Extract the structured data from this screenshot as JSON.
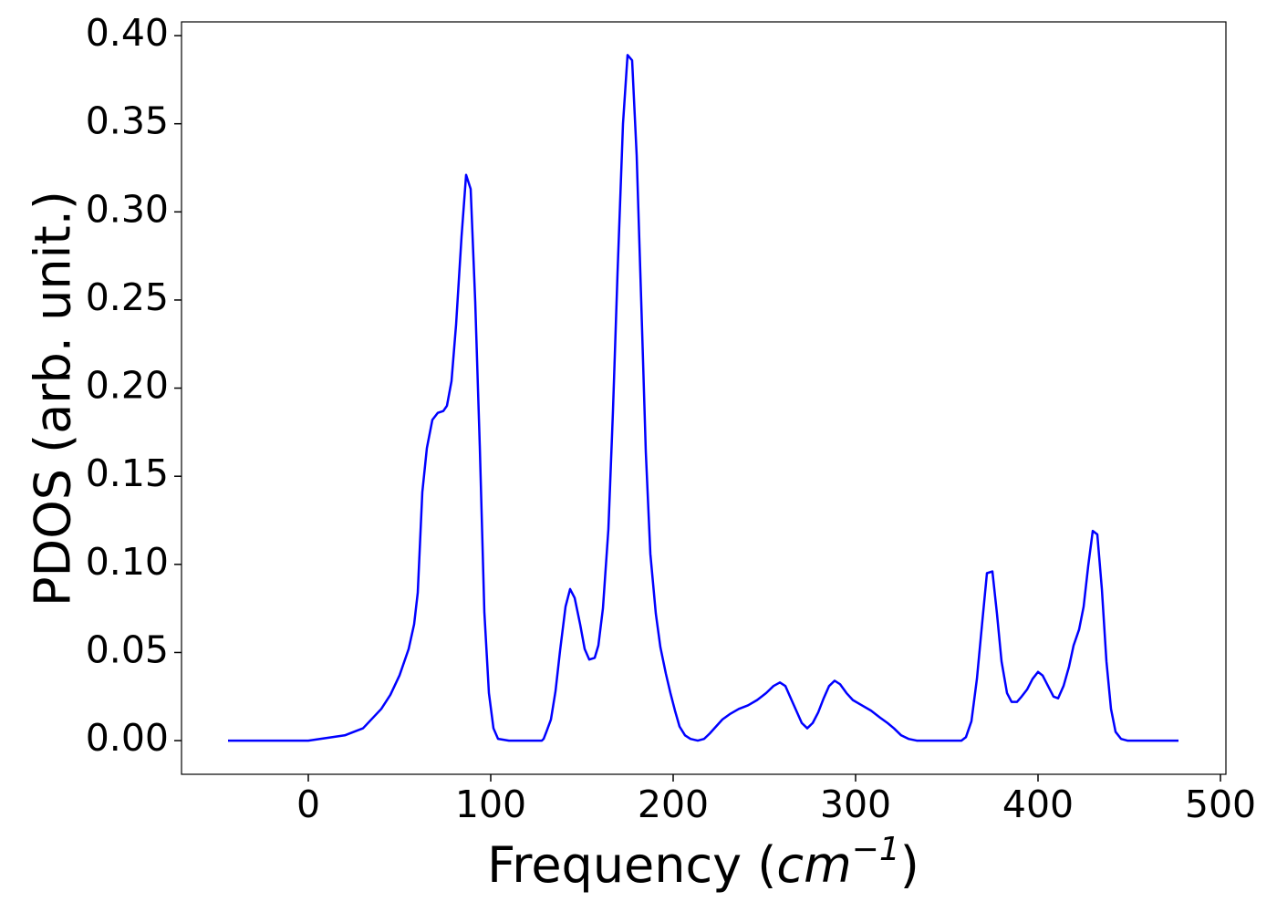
{
  "chart_data": {
    "type": "line",
    "xlabel": [
      "Frequency (",
      "cm",
      "−1",
      ")"
    ],
    "ylabel": "PDOS (arb. unit.)",
    "color": "#0000ff",
    "x": [
      -44,
      0,
      20,
      30,
      40,
      45,
      50,
      55,
      58,
      60,
      62.5,
      65,
      68,
      71,
      74,
      76,
      78.5,
      81,
      84,
      86.5,
      89,
      91.5,
      94,
      96.5,
      99,
      101.5,
      104,
      110,
      128,
      129,
      130.5,
      133,
      135.5,
      138,
      141,
      143.5,
      146,
      149,
      151.5,
      154,
      157,
      159,
      161.5,
      164.5,
      167,
      169.5,
      172.5,
      175,
      177.5,
      180,
      182.5,
      185,
      187.5,
      190.5,
      193,
      196,
      198.5,
      201,
      203.5,
      206.5,
      209.5,
      213.5,
      217,
      220,
      223.5,
      227,
      231,
      236,
      241,
      246,
      251,
      255,
      258.5,
      261.5,
      264.5,
      267.5,
      270.5,
      273.5,
      276.5,
      279.5,
      282.5,
      285.5,
      288.5,
      291.5,
      295,
      298.5,
      303.5,
      308.5,
      313.5,
      317.5,
      321,
      325,
      329,
      333.5,
      358,
      360.5,
      363.5,
      366.5,
      369.5,
      372,
      375,
      377.5,
      380,
      383,
      385.5,
      388.5,
      391,
      394,
      397,
      400,
      402.5,
      405.5,
      408.5,
      411,
      414,
      417,
      419.5,
      422.5,
      425,
      427.5,
      430,
      432.5,
      435,
      437.5,
      440,
      442.5,
      445.5,
      449,
      477
    ],
    "values": [
      0,
      0,
      0.003,
      0.007,
      0.018,
      0.026,
      0.037,
      0.052,
      0.066,
      0.084,
      0.141,
      0.166,
      0.182,
      0.186,
      0.187,
      0.19,
      0.204,
      0.236,
      0.286,
      0.321,
      0.313,
      0.249,
      0.167,
      0.073,
      0.027,
      0.007,
      0.001,
      0,
      0,
      0.001,
      0.005,
      0.012,
      0.028,
      0.051,
      0.076,
      0.086,
      0.081,
      0.066,
      0.052,
      0.046,
      0.047,
      0.054,
      0.075,
      0.12,
      0.187,
      0.265,
      0.35,
      0.389,
      0.386,
      0.332,
      0.249,
      0.164,
      0.106,
      0.072,
      0.053,
      0.038,
      0.027,
      0.017,
      0.008,
      0.003,
      0.001,
      0,
      0.001,
      0.004,
      0.008,
      0.012,
      0.015,
      0.018,
      0.02,
      0.023,
      0.027,
      0.031,
      0.033,
      0.031,
      0.024,
      0.017,
      0.01,
      0.007,
      0.01,
      0.016,
      0.024,
      0.031,
      0.034,
      0.032,
      0.027,
      0.023,
      0.02,
      0.017,
      0.013,
      0.01,
      0.007,
      0.003,
      0.001,
      0,
      0,
      0.002,
      0.011,
      0.035,
      0.068,
      0.095,
      0.096,
      0.072,
      0.045,
      0.027,
      0.022,
      0.022,
      0.025,
      0.029,
      0.035,
      0.039,
      0.037,
      0.031,
      0.025,
      0.024,
      0.031,
      0.042,
      0.054,
      0.063,
      0.076,
      0.099,
      0.119,
      0.117,
      0.086,
      0.045,
      0.018,
      0.005,
      0.001,
      0,
      0
    ],
    "xlim": [
      -69.5,
      503
    ],
    "ylim": [
      -0.0191,
      0.4078
    ],
    "xticks": [
      0,
      100,
      200,
      300,
      400,
      500
    ],
    "yticks": [
      {
        "value": 0,
        "label": "0.00"
      },
      {
        "value": 0.05,
        "label": "0.05"
      },
      {
        "value": 0.1,
        "label": "0.10"
      },
      {
        "value": 0.15,
        "label": "0.15"
      },
      {
        "value": 0.2,
        "label": "0.20"
      },
      {
        "value": 0.25,
        "label": "0.25"
      },
      {
        "value": 0.3,
        "label": "0.30"
      },
      {
        "value": 0.35,
        "label": "0.35"
      },
      {
        "value": 0.4,
        "label": "0.40"
      }
    ]
  }
}
